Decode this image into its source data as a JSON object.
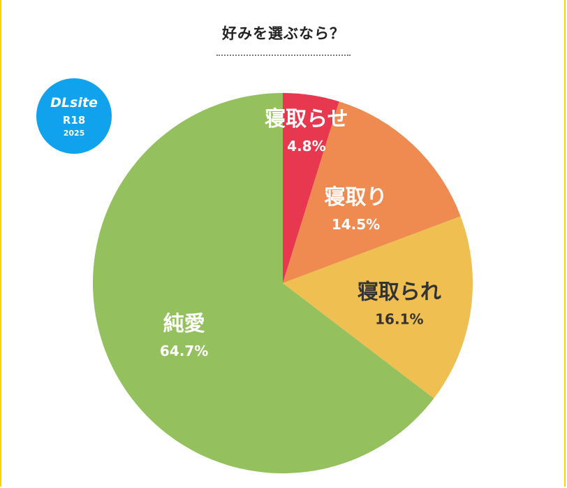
{
  "title": "好みを選ぶなら？",
  "logo": {
    "name": "DLsite",
    "rating": "R18",
    "year": "2025"
  },
  "colors": {
    "frame": "#f5d700",
    "logo": "#11a2ee"
  },
  "chart_data": {
    "type": "pie",
    "title": "好みを選ぶなら？",
    "slices": [
      {
        "label": "寝取らせ",
        "value": 4.8,
        "display": "4.8%",
        "color": "#e8384f",
        "text_color": "#ffffff"
      },
      {
        "label": "寝取り",
        "value": 14.5,
        "display": "14.5%",
        "color": "#ef8a51",
        "text_color": "#ffffff"
      },
      {
        "label": "寝取られ",
        "value": 16.1,
        "display": "16.1%",
        "color": "#efbf52",
        "text_color": "#333333"
      },
      {
        "label": "純愛",
        "value": 64.7,
        "display": "64.7%",
        "color": "#94c15e",
        "text_color": "#ffffff"
      }
    ],
    "start_angle": "12 o'clock",
    "direction": "clockwise",
    "legend": "none"
  }
}
